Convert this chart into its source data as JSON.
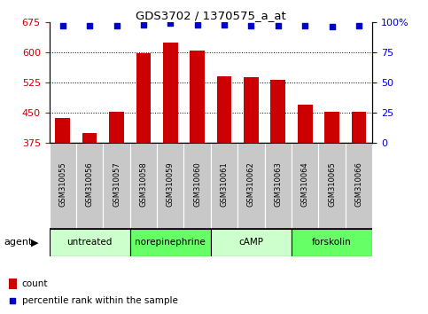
{
  "title": "GDS3702 / 1370575_a_at",
  "samples": [
    "GSM310055",
    "GSM310056",
    "GSM310057",
    "GSM310058",
    "GSM310059",
    "GSM310060",
    "GSM310061",
    "GSM310062",
    "GSM310063",
    "GSM310064",
    "GSM310065",
    "GSM310066"
  ],
  "bar_values": [
    437,
    400,
    453,
    598,
    623,
    604,
    540,
    538,
    532,
    470,
    452,
    453
  ],
  "percentile_values": [
    97,
    97,
    97,
    98,
    99,
    98,
    98,
    97,
    97,
    97,
    96,
    97
  ],
  "bar_color": "#cc0000",
  "dot_color": "#0000cc",
  "ylim_left": [
    375,
    675
  ],
  "ylim_right": [
    0,
    100
  ],
  "yticks_left": [
    375,
    450,
    525,
    600,
    675
  ],
  "yticks_right": [
    0,
    25,
    50,
    75,
    100
  ],
  "agent_groups": [
    {
      "label": "untreated",
      "start": 0,
      "end": 3,
      "color": "#ccffcc"
    },
    {
      "label": "norepinephrine",
      "start": 3,
      "end": 6,
      "color": "#66ff66"
    },
    {
      "label": "cAMP",
      "start": 6,
      "end": 9,
      "color": "#ccffcc"
    },
    {
      "label": "forskolin",
      "start": 9,
      "end": 12,
      "color": "#66ff66"
    }
  ],
  "legend_count_label": "count",
  "legend_percentile_label": "percentile rank within the sample",
  "agent_label": "agent",
  "background_color": "#ffffff",
  "bar_bottom": 375,
  "ylabel_left_color": "#cc0000",
  "ylabel_right_color": "#0000cc",
  "tick_label_area_color": "#cccccc",
  "figsize": [
    4.83,
    3.54
  ],
  "dpi": 100
}
